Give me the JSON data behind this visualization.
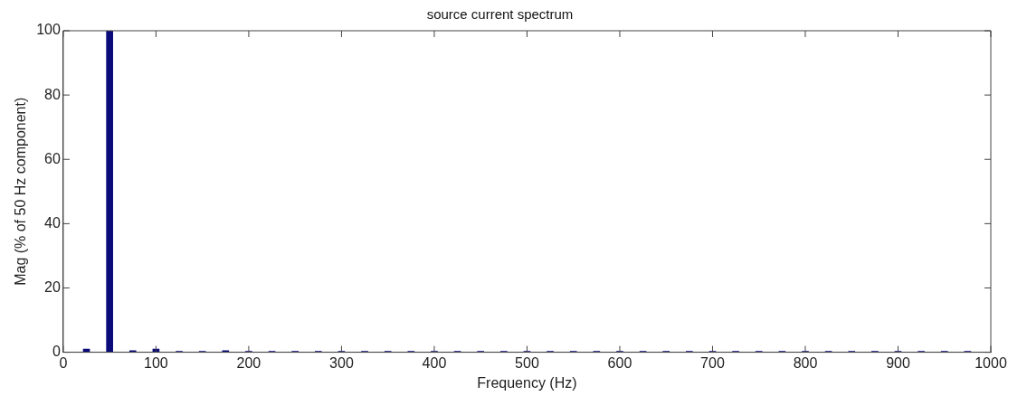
{
  "chart_data": {
    "type": "bar",
    "title": "source current spectrum",
    "xlabel": "Frequency (Hz)",
    "ylabel": "Mag (% of 50 Hz component)",
    "x": [
      25,
      50,
      75,
      100,
      125,
      150,
      175,
      200,
      225,
      250,
      275,
      300,
      325,
      350,
      375,
      400,
      425,
      450,
      475,
      500,
      525,
      550,
      575,
      600,
      625,
      650,
      675,
      700,
      725,
      750,
      775,
      800,
      825,
      850,
      875,
      900,
      925,
      950,
      975
    ],
    "values": [
      1,
      100,
      0.5,
      1,
      0.3,
      0.3,
      0.5,
      0.3,
      0.3,
      0.3,
      0.3,
      0.3,
      0.3,
      0.3,
      0.3,
      0.3,
      0.3,
      0.3,
      0.3,
      0.3,
      0.3,
      0.3,
      0.3,
      0.3,
      0.3,
      0.3,
      0.3,
      0.3,
      0.3,
      0.3,
      0.3,
      0.3,
      0.3,
      0.3,
      0.3,
      0.3,
      0.3,
      0.3,
      0.3
    ],
    "color": "#0a0a7a",
    "xlim": [
      0,
      1000
    ],
    "xticks": [
      0,
      100,
      200,
      300,
      400,
      500,
      600,
      700,
      800,
      900,
      1000
    ],
    "ylim": [
      0,
      100
    ],
    "yticks": [
      0,
      20,
      40,
      60,
      80,
      100
    ],
    "grid": false,
    "legend": false
  }
}
